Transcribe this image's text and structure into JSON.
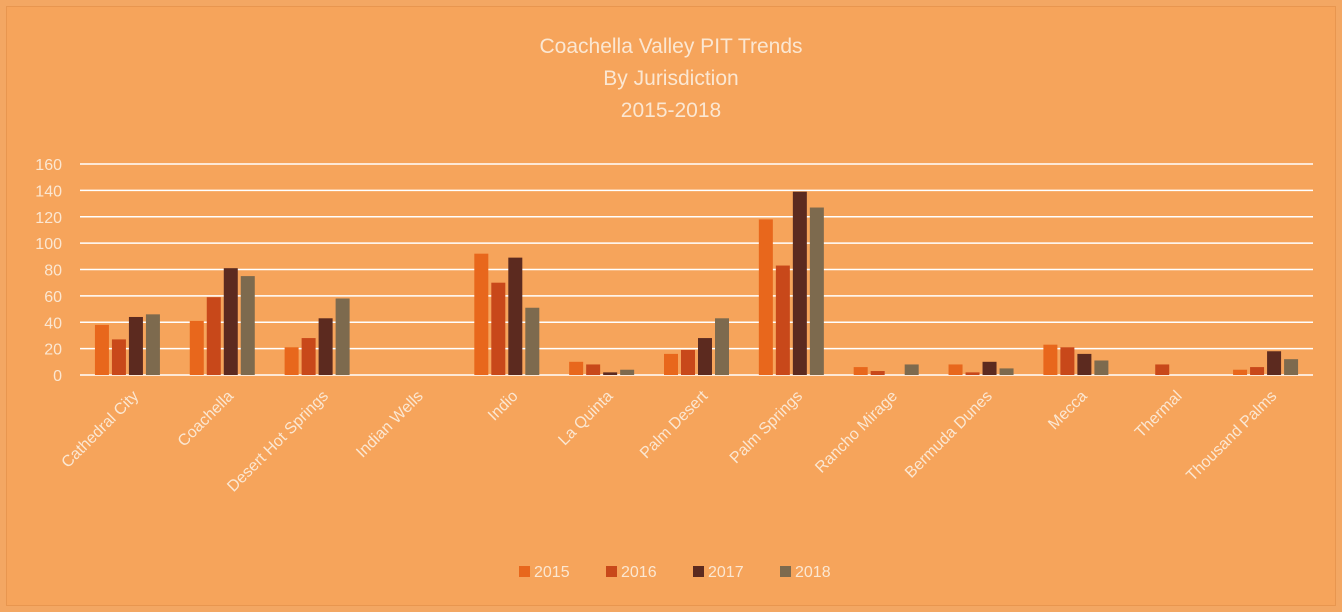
{
  "chart_data": {
    "type": "bar",
    "title": [
      "Coachella Valley PIT Trends",
      "By Jurisdiction",
      "2015-2018"
    ],
    "xlabel": "",
    "ylabel": "",
    "ylim": [
      0,
      160
    ],
    "yticks": [
      0,
      20,
      40,
      60,
      80,
      100,
      120,
      140,
      160
    ],
    "grid": true,
    "legend_position": "bottom",
    "categories": [
      "Cathedral City",
      "Coachella",
      "Desert Hot Springs",
      "Indian Wells",
      "Indio",
      "La Quinta",
      "Palm Desert",
      "Palm Springs",
      "Rancho Mirage",
      "Bermuda Dunes",
      "Mecca",
      "Thermal",
      "Thousand Palms"
    ],
    "series": [
      {
        "name": "2015",
        "color": "#e8671c",
        "values": [
          38,
          41,
          21,
          0,
          92,
          10,
          16,
          118,
          6,
          8,
          23,
          0,
          4
        ]
      },
      {
        "name": "2016",
        "color": "#c8481a",
        "values": [
          27,
          59,
          28,
          0,
          70,
          8,
          19,
          83,
          3,
          2,
          21,
          8,
          6
        ]
      },
      {
        "name": "2017",
        "color": "#5c2a1f",
        "values": [
          44,
          81,
          43,
          0,
          89,
          2,
          28,
          139,
          0,
          10,
          16,
          0,
          18
        ]
      },
      {
        "name": "2018",
        "color": "#7d6a4e",
        "values": [
          46,
          75,
          58,
          0,
          51,
          4,
          43,
          127,
          8,
          5,
          11,
          0,
          12
        ]
      }
    ]
  }
}
